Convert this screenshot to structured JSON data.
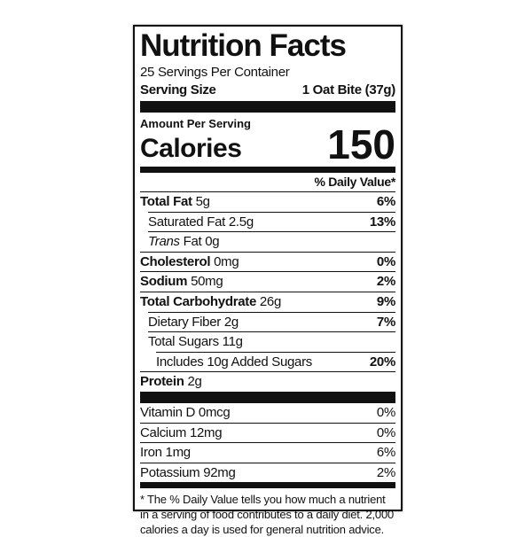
{
  "header": {
    "title": "Nutrition Facts",
    "servings": "25 Servings Per Container",
    "serving_size_label": "Serving Size",
    "serving_size": "1 Oat Bite (37g)"
  },
  "calories": {
    "amount_label": "Amount Per Serving",
    "label": "Calories",
    "value": "150"
  },
  "dv_header": "% Daily Value*",
  "nutrients": [
    {
      "name": "Total Fat",
      "amount": "5g",
      "dv": "6%"
    },
    {
      "name": "Saturated Fat",
      "amount": "2.5g",
      "dv": "13%"
    },
    {
      "name_italic": "Trans",
      "name": "Fat",
      "amount": "0g"
    },
    {
      "name": "Cholesterol",
      "amount": "0mg",
      "dv": "0%"
    },
    {
      "name": "Sodium",
      "amount": "50mg",
      "dv": "2%"
    },
    {
      "name": "Total Carbohydrate",
      "amount": "26g",
      "dv": "9%"
    },
    {
      "name": "Dietary Fiber",
      "amount": "2g",
      "dv": "7%"
    },
    {
      "name": "Total Sugars",
      "amount": "11g"
    },
    {
      "name": "Includes 10g Added Sugars",
      "dv": "20%"
    },
    {
      "name": "Protein",
      "amount": "2g"
    }
  ],
  "vitamins": [
    {
      "name": "Vitamin D",
      "amount": "0mcg",
      "dv": "0%"
    },
    {
      "name": "Calcium",
      "amount": "12mg",
      "dv": "0%"
    },
    {
      "name": "Iron",
      "amount": "1mg",
      "dv": "6%"
    },
    {
      "name": "Potassium",
      "amount": "92mg",
      "dv": "2%"
    }
  ],
  "footnote": "* The % Daily Value tells you how much a nutrient in a serving of food contributes to a daily diet. 2,000 calories a day is used for general nutrition advice."
}
